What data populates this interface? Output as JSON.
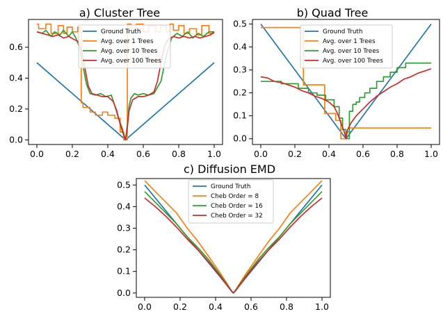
{
  "chart_data": [
    {
      "type": "line",
      "title": "a) Cluster Tree",
      "xlim": [
        0,
        1
      ],
      "ylim": [
        -0.03,
        0.78
      ],
      "xticks": [
        "0.0",
        "0.2",
        "0.4",
        "0.6",
        "0.8",
        "1.0"
      ],
      "yticks": [
        "0.0",
        "0.2",
        "0.4",
        "0.6"
      ],
      "legend_position": "upper-center",
      "series": [
        {
          "name": "Ground Truth",
          "color": "#1f77b4",
          "x": [
            0,
            0.5,
            1
          ],
          "y": [
            0.5,
            0.0,
            0.5
          ]
        },
        {
          "name": "Avg. over 1 Trees",
          "color": "#ff7f0e",
          "x": [
            0,
            0.01,
            0.01,
            0.05,
            0.05,
            0.08,
            0.08,
            0.12,
            0.12,
            0.15,
            0.15,
            0.17,
            0.17,
            0.2,
            0.2,
            0.23,
            0.23,
            0.25,
            0.25,
            0.26,
            0.26,
            0.3,
            0.3,
            0.33,
            0.33,
            0.37,
            0.37,
            0.4,
            0.4,
            0.44,
            0.44,
            0.47,
            0.47,
            0.49,
            0.49,
            0.5,
            0.51,
            0.51,
            0.53,
            0.53,
            0.56,
            0.56,
            0.6,
            0.6,
            0.63,
            0.63,
            0.67,
            0.67,
            0.7,
            0.7,
            0.73,
            0.73,
            0.75,
            0.75,
            0.77,
            0.77,
            0.8,
            0.8,
            0.83,
            0.83,
            0.86,
            0.86,
            0.9,
            0.9,
            0.93,
            0.93,
            0.97,
            0.97,
            1.0
          ],
          "y": [
            0.75,
            0.75,
            0.72,
            0.72,
            0.75,
            0.75,
            0.69,
            0.69,
            0.74,
            0.74,
            0.69,
            0.69,
            0.73,
            0.73,
            0.7,
            0.7,
            0.73,
            0.73,
            0.24,
            0.24,
            0.21,
            0.21,
            0.18,
            0.18,
            0.16,
            0.16,
            0.18,
            0.18,
            0.16,
            0.16,
            0.14,
            0.14,
            0.05,
            0.05,
            0.0,
            0.0,
            0.0,
            0.75,
            0.75,
            0.72,
            0.72,
            0.75,
            0.75,
            0.7,
            0.7,
            0.74,
            0.74,
            0.7,
            0.7,
            0.74,
            0.74,
            0.7,
            0.7,
            0.75,
            0.75,
            0.71,
            0.71,
            0.74,
            0.74,
            0.69,
            0.69,
            0.72,
            0.72,
            0.68,
            0.68,
            0.74,
            0.74,
            0.69,
            0.69
          ]
        },
        {
          "name": "Avg. over 10 Trees",
          "color": "#2ca02c",
          "x": [
            0,
            0.03,
            0.05,
            0.08,
            0.1,
            0.13,
            0.15,
            0.18,
            0.2,
            0.22,
            0.24,
            0.26,
            0.28,
            0.3,
            0.33,
            0.36,
            0.39,
            0.42,
            0.44,
            0.46,
            0.48,
            0.5,
            0.51,
            0.52,
            0.53,
            0.55,
            0.57,
            0.6,
            0.63,
            0.66,
            0.7,
            0.73,
            0.76,
            0.79,
            0.82,
            0.85,
            0.88,
            0.91,
            0.94,
            0.97,
            1.0
          ],
          "y": [
            0.7,
            0.69,
            0.71,
            0.67,
            0.7,
            0.68,
            0.71,
            0.67,
            0.7,
            0.66,
            0.6,
            0.48,
            0.36,
            0.3,
            0.29,
            0.3,
            0.28,
            0.29,
            0.22,
            0.14,
            0.08,
            0.0,
            0.1,
            0.22,
            0.27,
            0.3,
            0.29,
            0.3,
            0.29,
            0.3,
            0.38,
            0.55,
            0.66,
            0.69,
            0.67,
            0.7,
            0.66,
            0.69,
            0.67,
            0.7,
            0.7
          ]
        },
        {
          "name": "Avg. over 100 Trees",
          "color": "#d62728",
          "x": [
            0,
            0.03,
            0.06,
            0.09,
            0.12,
            0.15,
            0.18,
            0.21,
            0.23,
            0.25,
            0.27,
            0.29,
            0.31,
            0.34,
            0.37,
            0.4,
            0.43,
            0.45,
            0.47,
            0.49,
            0.5,
            0.51,
            0.52,
            0.54,
            0.57,
            0.6,
            0.63,
            0.66,
            0.68,
            0.7,
            0.72,
            0.74,
            0.77,
            0.8,
            0.83,
            0.86,
            0.89,
            0.92,
            0.95,
            0.98,
            1.0
          ],
          "y": [
            0.7,
            0.69,
            0.68,
            0.67,
            0.68,
            0.66,
            0.67,
            0.65,
            0.64,
            0.59,
            0.47,
            0.35,
            0.3,
            0.29,
            0.28,
            0.28,
            0.25,
            0.19,
            0.1,
            0.03,
            0.0,
            0.08,
            0.19,
            0.26,
            0.28,
            0.28,
            0.29,
            0.31,
            0.38,
            0.5,
            0.61,
            0.65,
            0.67,
            0.66,
            0.67,
            0.66,
            0.67,
            0.66,
            0.67,
            0.68,
            0.7
          ]
        }
      ]
    },
    {
      "type": "line",
      "title": "b) Quad Tree",
      "xlim": [
        0,
        1
      ],
      "ylim": [
        -0.025,
        0.52
      ],
      "xticks": [
        "0.0",
        "0.2",
        "0.4",
        "0.6",
        "0.8",
        "1.0"
      ],
      "yticks": [
        "0.0",
        "0.1",
        "0.2",
        "0.3",
        "0.4",
        "0.5"
      ],
      "legend_position": "upper-center",
      "series": [
        {
          "name": "Ground Truth",
          "color": "#1f77b4",
          "x": [
            0,
            0.5,
            1
          ],
          "y": [
            0.5,
            0.0,
            0.5
          ]
        },
        {
          "name": "Avg. over 1 Trees",
          "color": "#ff7f0e",
          "x": [
            0,
            0.25,
            0.25,
            0.375,
            0.375,
            0.44,
            0.44,
            0.47,
            0.47,
            0.5,
            0.5,
            0.52,
            0.52,
            1.0
          ],
          "y": [
            0.485,
            0.485,
            0.235,
            0.235,
            0.11,
            0.11,
            0.08,
            0.08,
            0.0,
            0.0,
            0.03,
            0.03,
            0.047,
            0.047
          ]
        },
        {
          "name": "Avg. over 10 Trees",
          "color": "#2ca02c",
          "x": [
            0,
            0.12,
            0.12,
            0.22,
            0.22,
            0.28,
            0.28,
            0.33,
            0.33,
            0.38,
            0.38,
            0.43,
            0.43,
            0.46,
            0.46,
            0.48,
            0.48,
            0.5,
            0.5,
            0.52,
            0.52,
            0.54,
            0.54,
            0.56,
            0.56,
            0.58,
            0.58,
            0.61,
            0.61,
            0.64,
            0.64,
            0.68,
            0.68,
            0.72,
            0.72,
            0.76,
            0.76,
            0.8,
            0.8,
            0.85,
            0.85,
            0.9,
            0.9,
            1.0
          ],
          "y": [
            0.25,
            0.25,
            0.24,
            0.24,
            0.22,
            0.22,
            0.2,
            0.2,
            0.19,
            0.19,
            0.17,
            0.17,
            0.14,
            0.14,
            0.09,
            0.09,
            0.04,
            0.04,
            0.0,
            0.0,
            0.12,
            0.12,
            0.15,
            0.15,
            0.16,
            0.16,
            0.18,
            0.18,
            0.2,
            0.2,
            0.22,
            0.22,
            0.25,
            0.25,
            0.27,
            0.27,
            0.29,
            0.29,
            0.31,
            0.31,
            0.33,
            0.33,
            0.33,
            0.33
          ]
        },
        {
          "name": "Avg. over 100 Trees",
          "color": "#d62728",
          "x": [
            0,
            0.04,
            0.08,
            0.12,
            0.16,
            0.2,
            0.24,
            0.28,
            0.32,
            0.36,
            0.4,
            0.43,
            0.45,
            0.47,
            0.49,
            0.5,
            0.51,
            0.53,
            0.56,
            0.6,
            0.64,
            0.68,
            0.72,
            0.76,
            0.8,
            0.84,
            0.88,
            0.92,
            0.96,
            1.0
          ],
          "y": [
            0.27,
            0.265,
            0.25,
            0.245,
            0.235,
            0.225,
            0.21,
            0.2,
            0.185,
            0.175,
            0.16,
            0.14,
            0.11,
            0.07,
            0.03,
            0.0,
            0.04,
            0.07,
            0.1,
            0.13,
            0.16,
            0.185,
            0.205,
            0.225,
            0.24,
            0.26,
            0.27,
            0.285,
            0.295,
            0.305
          ]
        }
      ]
    },
    {
      "type": "line",
      "title": "c) Diffusion EMD",
      "xlim": [
        0,
        1
      ],
      "ylim": [
        -0.02,
        0.53
      ],
      "xticks": [
        "0.0",
        "0.2",
        "0.4",
        "0.6",
        "0.8",
        "1.0"
      ],
      "yticks": [
        "0.0",
        "0.1",
        "0.2",
        "0.3",
        "0.4",
        "0.5"
      ],
      "legend_position": "upper-center",
      "series": [
        {
          "name": "Ground Truth",
          "color": "#1f77b4",
          "x": [
            0,
            0.5,
            1
          ],
          "y": [
            0.5,
            0.0,
            0.5
          ]
        },
        {
          "name": "Cheb Order = 8",
          "color": "#ff7f0e",
          "x": [
            0,
            0.06,
            0.12,
            0.18,
            0.24,
            0.3,
            0.36,
            0.42,
            0.46,
            0.49,
            0.5,
            0.51,
            0.54,
            0.58,
            0.64,
            0.7,
            0.76,
            0.82,
            0.88,
            0.94,
            1.0
          ],
          "y": [
            0.52,
            0.47,
            0.42,
            0.37,
            0.3,
            0.24,
            0.17,
            0.1,
            0.05,
            0.01,
            0.0,
            0.01,
            0.05,
            0.1,
            0.17,
            0.24,
            0.3,
            0.37,
            0.42,
            0.47,
            0.52
          ]
        },
        {
          "name": "Cheb Order = 16",
          "color": "#2ca02c",
          "x": [
            0,
            0.06,
            0.12,
            0.18,
            0.24,
            0.3,
            0.36,
            0.42,
            0.46,
            0.49,
            0.5,
            0.51,
            0.54,
            0.58,
            0.64,
            0.7,
            0.76,
            0.82,
            0.88,
            0.94,
            1.0
          ],
          "y": [
            0.47,
            0.42,
            0.37,
            0.32,
            0.26,
            0.21,
            0.155,
            0.09,
            0.045,
            0.01,
            0.0,
            0.01,
            0.045,
            0.09,
            0.155,
            0.21,
            0.26,
            0.32,
            0.37,
            0.42,
            0.47
          ]
        },
        {
          "name": "Cheb Order = 32",
          "color": "#d62728",
          "x": [
            0,
            0.06,
            0.12,
            0.18,
            0.24,
            0.3,
            0.36,
            0.42,
            0.46,
            0.49,
            0.5,
            0.51,
            0.54,
            0.58,
            0.64,
            0.7,
            0.76,
            0.82,
            0.88,
            0.94,
            1.0
          ],
          "y": [
            0.44,
            0.4,
            0.355,
            0.305,
            0.25,
            0.2,
            0.145,
            0.085,
            0.04,
            0.008,
            0.0,
            0.008,
            0.04,
            0.085,
            0.145,
            0.2,
            0.25,
            0.305,
            0.355,
            0.4,
            0.44
          ]
        }
      ]
    }
  ]
}
